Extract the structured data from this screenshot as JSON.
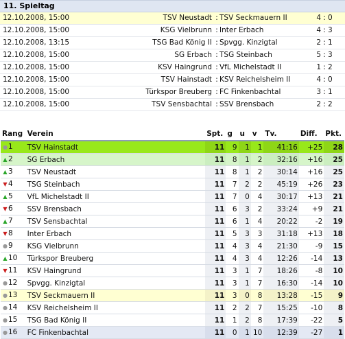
{
  "title": "11. Spieltag",
  "matches": [
    {
      "date": "12.10.2008, 15:00",
      "home": "TSV Neustadt",
      "away": "TSV Seckmauern II",
      "h": "4",
      "a": "0",
      "hl": true
    },
    {
      "date": "12.10.2008, 15:00",
      "home": "KSG Vielbrunn",
      "away": "Inter Erbach",
      "h": "4",
      "a": "3",
      "hl": false
    },
    {
      "date": "12.10.2008, 13:15",
      "home": "TSG Bad König II",
      "away": "Spvgg. Kinzigtal",
      "h": "2",
      "a": "1",
      "hl": false
    },
    {
      "date": "12.10.2008, 15:00",
      "home": "SG Erbach",
      "away": "TSG Steinbach",
      "h": "5",
      "a": "3",
      "hl": false
    },
    {
      "date": "12.10.2008, 15:00",
      "home": "KSV Haingrund",
      "away": "VfL Michelstadt II",
      "h": "1",
      "a": "2",
      "hl": false
    },
    {
      "date": "12.10.2008, 15:00",
      "home": "TSV Hainstadt",
      "away": "KSV Reichelsheim II",
      "h": "4",
      "a": "0",
      "hl": false
    },
    {
      "date": "12.10.2008, 15:00",
      "home": "Türkspor Breuberg",
      "away": "FC Finkenbachtal",
      "h": "3",
      "a": "1",
      "hl": false
    },
    {
      "date": "12.10.2008, 15:00",
      "home": "TSV Sensbachtal",
      "away": "SSV Brensbach",
      "h": "2",
      "a": "2",
      "hl": false
    }
  ],
  "match_sep": ":",
  "score_sep": ":",
  "table_headers": {
    "rang": "Rang",
    "verein": "Verein",
    "spt": "Spt.",
    "g": "g",
    "u": "u",
    "v": "v",
    "tv": "Tv.",
    "diff": "Diff.",
    "pkt": "Pkt."
  },
  "standings": [
    {
      "trend": "same",
      "rank": "1",
      "team": "TSV Hainstadt",
      "spt": "11",
      "g": "9",
      "u": "1",
      "v": "1",
      "tv": "41:16",
      "diff": "+25",
      "pkt": "28",
      "style": "leader"
    },
    {
      "trend": "up",
      "rank": "2",
      "team": "SG Erbach",
      "spt": "11",
      "g": "8",
      "u": "1",
      "v": "2",
      "tv": "32:16",
      "diff": "+16",
      "pkt": "25",
      "style": "second"
    },
    {
      "trend": "up",
      "rank": "3",
      "team": "TSV Neustadt",
      "spt": "11",
      "g": "8",
      "u": "1",
      "v": "2",
      "tv": "30:14",
      "diff": "+16",
      "pkt": "25",
      "style": ""
    },
    {
      "trend": "down",
      "rank": "4",
      "team": "TSG Steinbach",
      "spt": "11",
      "g": "7",
      "u": "2",
      "v": "2",
      "tv": "45:19",
      "diff": "+26",
      "pkt": "23",
      "style": ""
    },
    {
      "trend": "up",
      "rank": "5",
      "team": "VfL Michelstadt II",
      "spt": "11",
      "g": "7",
      "u": "0",
      "v": "4",
      "tv": "30:17",
      "diff": "+13",
      "pkt": "21",
      "style": ""
    },
    {
      "trend": "down",
      "rank": "6",
      "team": "SSV Brensbach",
      "spt": "11",
      "g": "6",
      "u": "3",
      "v": "2",
      "tv": "33:24",
      "diff": "+9",
      "pkt": "21",
      "style": ""
    },
    {
      "trend": "up",
      "rank": "7",
      "team": "TSV Sensbachtal",
      "spt": "11",
      "g": "6",
      "u": "1",
      "v": "4",
      "tv": "20:22",
      "diff": "-2",
      "pkt": "19",
      "style": ""
    },
    {
      "trend": "down",
      "rank": "8",
      "team": "Inter Erbach",
      "spt": "11",
      "g": "5",
      "u": "3",
      "v": "3",
      "tv": "31:18",
      "diff": "+13",
      "pkt": "18",
      "style": ""
    },
    {
      "trend": "same",
      "rank": "9",
      "team": "KSG Vielbrunn",
      "spt": "11",
      "g": "4",
      "u": "3",
      "v": "4",
      "tv": "21:30",
      "diff": "-9",
      "pkt": "15",
      "style": ""
    },
    {
      "trend": "up",
      "rank": "10",
      "team": "Türkspor Breuberg",
      "spt": "11",
      "g": "4",
      "u": "3",
      "v": "4",
      "tv": "12:26",
      "diff": "-14",
      "pkt": "13",
      "style": ""
    },
    {
      "trend": "down",
      "rank": "11",
      "team": "KSV Haingrund",
      "spt": "11",
      "g": "3",
      "u": "1",
      "v": "7",
      "tv": "18:26",
      "diff": "-8",
      "pkt": "10",
      "style": ""
    },
    {
      "trend": "same",
      "rank": "12",
      "team": "Spvgg. Kinzigtal",
      "spt": "11",
      "g": "3",
      "u": "1",
      "v": "7",
      "tv": "16:30",
      "diff": "-14",
      "pkt": "10",
      "style": ""
    },
    {
      "trend": "same",
      "rank": "13",
      "team": "TSV Seckmauern II",
      "spt": "11",
      "g": "3",
      "u": "0",
      "v": "8",
      "tv": "13:28",
      "diff": "-15",
      "pkt": "9",
      "style": "mark"
    },
    {
      "trend": "same",
      "rank": "14",
      "team": "KSV Reichelsheim II",
      "spt": "11",
      "g": "2",
      "u": "2",
      "v": "7",
      "tv": "15:25",
      "diff": "-10",
      "pkt": "8",
      "style": ""
    },
    {
      "trend": "same",
      "rank": "15",
      "team": "TSG Bad König II",
      "spt": "11",
      "g": "1",
      "u": "2",
      "v": "8",
      "tv": "17:39",
      "diff": "-22",
      "pkt": "5",
      "style": ""
    },
    {
      "trend": "same",
      "rank": "16",
      "team": "FC Finkenbachtal",
      "spt": "11",
      "g": "0",
      "u": "1",
      "v": "10",
      "tv": "12:39",
      "diff": "-27",
      "pkt": "1",
      "style": "last"
    }
  ],
  "icons": {
    "up": "triangle-up-icon",
    "down": "triangle-down-icon",
    "same": "dot-icon"
  },
  "colors": {
    "leader": "#98e81a",
    "second": "#d6f5c9",
    "highlight": "#ffffd2",
    "last": "#e4e9f4",
    "up": "#2aa62a",
    "down": "#cc1f1f"
  }
}
